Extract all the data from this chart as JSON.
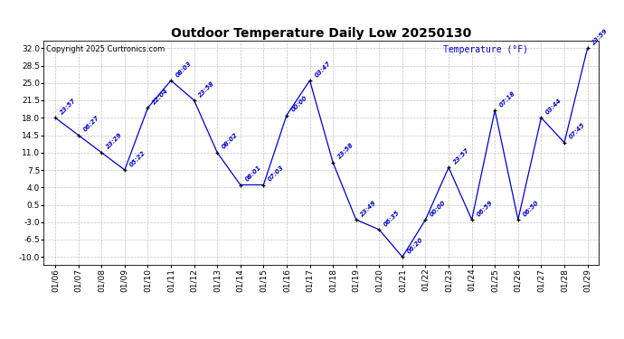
{
  "title": "Outdoor Temperature Daily Low 20250130",
  "ylabel": "Temperature (°F)",
  "copyright": "Copyright 2025 Curtronics.com",
  "ylim": [
    -11.5,
    33.5
  ],
  "yticks": [
    -10.0,
    -6.5,
    -3.0,
    0.5,
    4.0,
    7.5,
    11.0,
    14.5,
    18.0,
    21.5,
    25.0,
    28.5,
    32.0
  ],
  "background_color": "#ffffff",
  "line_color": "#0000cc",
  "marker_color": "#000000",
  "data_points": [
    {
      "date": "01/06",
      "time": "23:57",
      "temp": 18.0
    },
    {
      "date": "01/07",
      "time": "06:27",
      "temp": 14.5
    },
    {
      "date": "01/08",
      "time": "23:29",
      "temp": 11.0
    },
    {
      "date": "01/09",
      "time": "05:22",
      "temp": 7.5
    },
    {
      "date": "01/10",
      "time": "22:04",
      "temp": 20.0
    },
    {
      "date": "01/11",
      "time": "08:03",
      "temp": 25.5
    },
    {
      "date": "01/12",
      "time": "23:58",
      "temp": 21.5
    },
    {
      "date": "01/13",
      "time": "08:02",
      "temp": 11.0
    },
    {
      "date": "01/14",
      "time": "08:01",
      "temp": 4.5
    },
    {
      "date": "01/15",
      "time": "07:03",
      "temp": 4.5
    },
    {
      "date": "01/16",
      "time": "00:00",
      "temp": 18.5
    },
    {
      "date": "01/17",
      "time": "03:47",
      "temp": 25.5
    },
    {
      "date": "01/18",
      "time": "23:58",
      "temp": 9.0
    },
    {
      "date": "01/19",
      "time": "23:49",
      "temp": -2.5
    },
    {
      "date": "01/20",
      "time": "06:35",
      "temp": -4.5
    },
    {
      "date": "01/21",
      "time": "06:20",
      "temp": -10.0
    },
    {
      "date": "01/22",
      "time": "00:00",
      "temp": -2.5
    },
    {
      "date": "01/23",
      "time": "23:57",
      "temp": 8.0
    },
    {
      "date": "01/24",
      "time": "06:59",
      "temp": -2.5
    },
    {
      "date": "01/25",
      "time": "07:18",
      "temp": 19.5
    },
    {
      "date": "01/26",
      "time": "06:50",
      "temp": -2.5
    },
    {
      "date": "01/27",
      "time": "03:44",
      "temp": 18.0
    },
    {
      "date": "01/28",
      "time": "07:45",
      "temp": 13.0
    },
    {
      "date": "01/29",
      "time": "23:59",
      "temp": 32.0
    }
  ],
  "ytick_labels": [
    "-10.0",
    "-6.5",
    "-3.0",
    "0.5",
    "4.0",
    "7.5",
    "11.0",
    "14.5",
    "18.0",
    "21.5",
    "25.0",
    "28.5",
    "32.0"
  ]
}
